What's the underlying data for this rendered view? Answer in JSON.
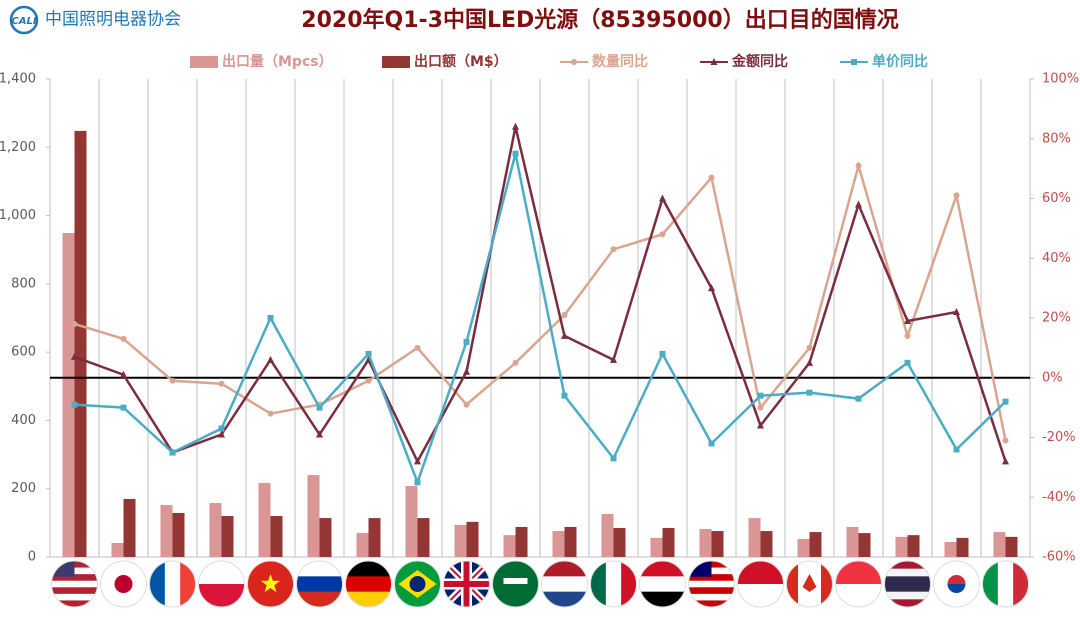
{
  "chart_data": {
    "type": "bar-line",
    "title": "2020年Q1-3中国LED光源（85395000）出口目的国情况",
    "logo": "CALI",
    "organization": "中国照明电器协会",
    "categories": [
      null,
      null,
      null,
      null,
      null,
      null,
      null,
      null,
      null,
      null,
      null,
      null,
      null,
      null,
      null,
      null,
      null,
      null,
      null,
      null
    ],
    "series": [
      {
        "name": "出口量（Mpcs）",
        "type": "bar",
        "color": "#d99694",
        "values": [
          949,
          41,
          152,
          158,
          217,
          240,
          70,
          208,
          94,
          64,
          76,
          126,
          56,
          82,
          114,
          53,
          88,
          59,
          44,
          73
        ]
      },
      {
        "name": "出口额（M$）",
        "type": "bar",
        "color": "#943634",
        "values": [
          1248,
          170,
          129,
          120,
          120,
          114,
          114,
          114,
          103,
          88,
          88,
          85,
          85,
          76,
          76,
          73,
          70,
          64,
          56,
          59
        ]
      },
      {
        "name": "数量同比",
        "type": "line",
        "axis": "y2",
        "marker": "circle",
        "color": "#d9a58e",
        "values": [
          18,
          13,
          -1,
          -2,
          -12,
          -9,
          -1,
          10,
          -9,
          5,
          21,
          43,
          48,
          67,
          -10,
          10,
          71,
          14,
          61,
          -21
        ]
      },
      {
        "name": "金额同比",
        "type": "line",
        "axis": "y2",
        "marker": "triangle",
        "color": "#7b2c3e",
        "values": [
          7,
          1,
          -25,
          -19,
          6,
          -19,
          6,
          -28,
          2,
          84,
          14,
          6,
          60,
          30,
          -16,
          5,
          58,
          19,
          22,
          -28
        ]
      },
      {
        "name": "单价同比",
        "type": "line",
        "axis": "y2",
        "marker": "square",
        "color": "#4bacc6",
        "values": [
          -9,
          -10,
          -25,
          -17,
          20,
          -10,
          8,
          -35,
          12,
          75,
          -6,
          -27,
          8,
          -22,
          -6,
          -5,
          -7,
          5,
          -24,
          -8
        ]
      }
    ],
    "ylim": [
      0,
      1400
    ],
    "yticks": [
      0,
      200,
      400,
      600,
      800,
      {
        "value": 1000,
        "label": "1,000"
      },
      {
        "value": 1200,
        "label": "1,200"
      },
      {
        "value": 1400,
        "label": "1,400"
      }
    ],
    "y2lim": [
      -60,
      100
    ],
    "y2ticks": [
      {
        "value": -60,
        "label": "-60%"
      },
      {
        "value": -40,
        "label": "-40%"
      },
      {
        "value": -20,
        "label": "-20%"
      },
      {
        "value": 0,
        "label": "0%"
      },
      {
        "value": 20,
        "label": "20%"
      },
      {
        "value": 40,
        "label": "40%"
      },
      {
        "value": 60,
        "label": "60%"
      },
      {
        "value": 80,
        "label": "80%"
      },
      {
        "value": 100,
        "label": "100%"
      }
    ],
    "y2_reference": 0,
    "grid": "vertical"
  }
}
